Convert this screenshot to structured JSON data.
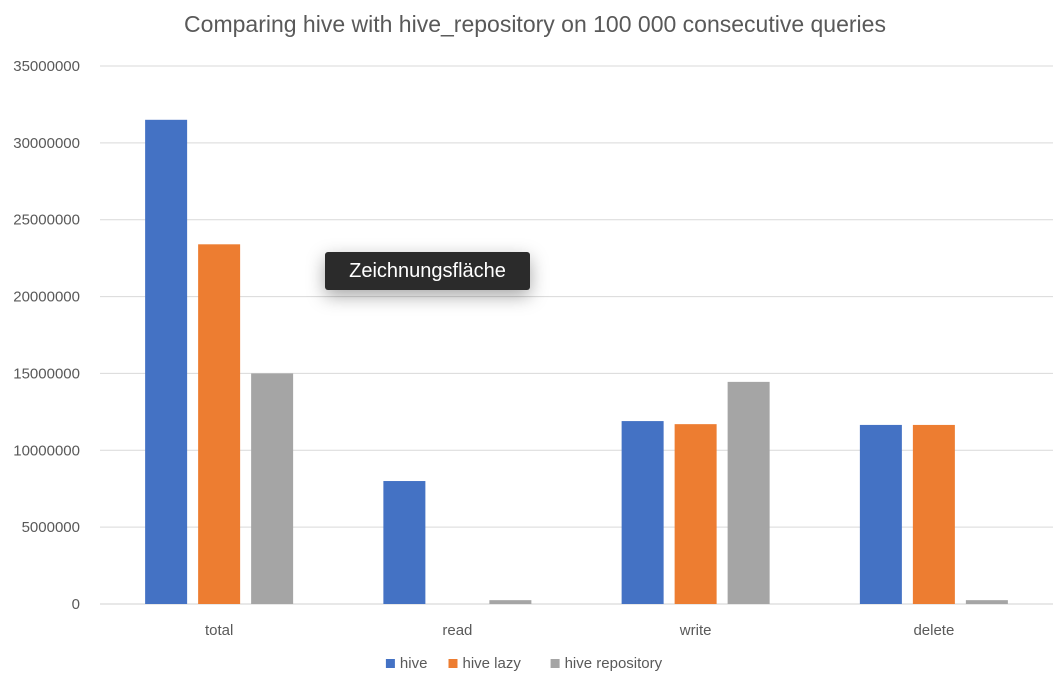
{
  "chart_data": {
    "type": "bar",
    "title": "Comparing hive with hive_repository on 100 000 consecutive queries",
    "categories": [
      "total",
      "read",
      "write",
      "delete"
    ],
    "series": [
      {
        "name": "hive",
        "color": "#4472C4",
        "values": [
          31500000,
          8000000,
          11900000,
          11650000
        ]
      },
      {
        "name": "hive lazy",
        "color": "#ED7D31",
        "values": [
          23400000,
          0,
          11700000,
          11650000
        ]
      },
      {
        "name": "hive repository",
        "color": "#A5A5A5",
        "values": [
          15000000,
          250000,
          14450000,
          250000
        ]
      }
    ],
    "ylim": [
      0,
      35000000
    ],
    "yticks": [
      0,
      5000000,
      10000000,
      15000000,
      20000000,
      25000000,
      30000000,
      35000000
    ],
    "ytick_labels": [
      "0",
      "5000000",
      "10000000",
      "15000000",
      "20000000",
      "25000000",
      "30000000",
      "35000000"
    ],
    "grid": true,
    "legend_position": "bottom"
  },
  "tooltip": {
    "label": "Zeichnungsfläche"
  }
}
